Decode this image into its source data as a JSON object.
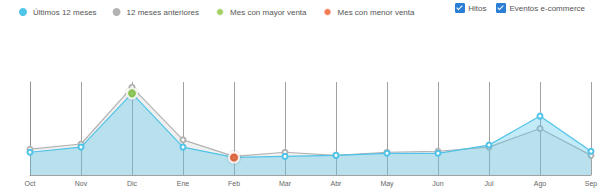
{
  "chart_data": {
    "type": "line",
    "categories": [
      "Oct",
      "Nov",
      "Dic",
      "Ene",
      "Feb",
      "Mar",
      "Abr",
      "May",
      "Jun",
      "Jul",
      "Ago",
      "Sep"
    ],
    "series": [
      {
        "name": "Últimos 12 meses",
        "color": "#4fc3e8",
        "values": [
          22,
          27,
          79,
          27,
          17,
          18,
          19,
          21,
          21,
          29,
          57,
          23
        ]
      },
      {
        "name": "12 meses anteriores",
        "color": "#b3b3b3",
        "values": [
          25,
          30,
          85,
          34,
          18,
          22,
          19,
          22,
          23,
          27,
          45,
          19
        ]
      },
      {
        "name": "Mes con mayor venta",
        "color": "#8dc63f",
        "type": "scatter",
        "values": [
          null,
          null,
          79,
          null,
          null,
          null,
          null,
          null,
          null,
          null,
          null,
          null
        ]
      },
      {
        "name": "Mes con menor venta",
        "color": "#f05a28",
        "type": "scatter",
        "values": [
          null,
          null,
          null,
          null,
          17,
          null,
          null,
          null,
          null,
          null,
          null,
          null
        ]
      }
    ],
    "ylim": [
      0,
      90
    ],
    "grid": true,
    "legend": "top-left",
    "tick_labels": "x",
    "toggles": [
      {
        "label": "Hitos",
        "checked": true
      },
      {
        "label": "Eventos e-commerce",
        "checked": true
      }
    ]
  }
}
